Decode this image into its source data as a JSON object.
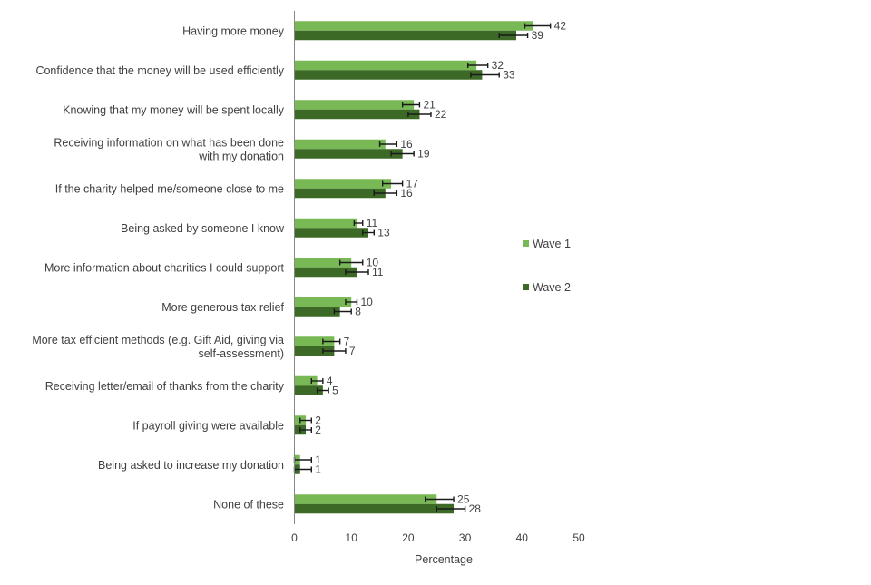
{
  "chart_data": {
    "type": "bar",
    "orientation": "horizontal",
    "title": "",
    "xlabel": "Percentage",
    "ylabel": "",
    "xlim": [
      0,
      50
    ],
    "xticks": [
      0,
      10,
      20,
      30,
      40,
      50
    ],
    "grid": false,
    "legend_position": "right",
    "categories": [
      [
        "Having more money"
      ],
      [
        "Confidence that the money will be used efficiently"
      ],
      [
        "Knowing that my money will be spent locally"
      ],
      [
        "Receiving information on what has been done",
        "with my donation"
      ],
      [
        "If the charity helped me/someone close to me"
      ],
      [
        "Being asked by someone I know"
      ],
      [
        "More information about charities I could support"
      ],
      [
        "More generous tax relief"
      ],
      [
        "More tax efficient methods (e.g. Gift Aid, giving via",
        "self-assessment)"
      ],
      [
        "Receiving letter/email of thanks from the charity"
      ],
      [
        "If payroll giving were available"
      ],
      [
        "Being asked to increase my donation"
      ],
      [
        "None of these"
      ]
    ],
    "series": [
      {
        "name": "Wave 1",
        "color": "#78b956",
        "values": [
          42,
          32,
          21,
          16,
          17,
          11,
          10,
          10,
          7,
          4,
          2,
          1,
          25
        ],
        "error_low": [
          40.5,
          30.5,
          19,
          15,
          15.5,
          10.5,
          8,
          9,
          5,
          3,
          1,
          0,
          23
        ],
        "error_high": [
          45,
          34,
          22,
          18,
          19,
          12,
          12,
          11,
          8,
          5,
          3,
          3,
          28
        ]
      },
      {
        "name": "Wave 2",
        "color": "#3c6a26",
        "values": [
          39,
          33,
          22,
          19,
          16,
          13,
          11,
          8,
          7,
          5,
          2,
          1,
          28
        ],
        "error_low": [
          36,
          31,
          20,
          17,
          14,
          12,
          9,
          7,
          5,
          4,
          1,
          0,
          25
        ],
        "error_high": [
          41,
          36,
          24,
          21,
          18,
          14,
          13,
          10,
          9,
          6,
          3,
          3,
          30
        ]
      }
    ]
  }
}
